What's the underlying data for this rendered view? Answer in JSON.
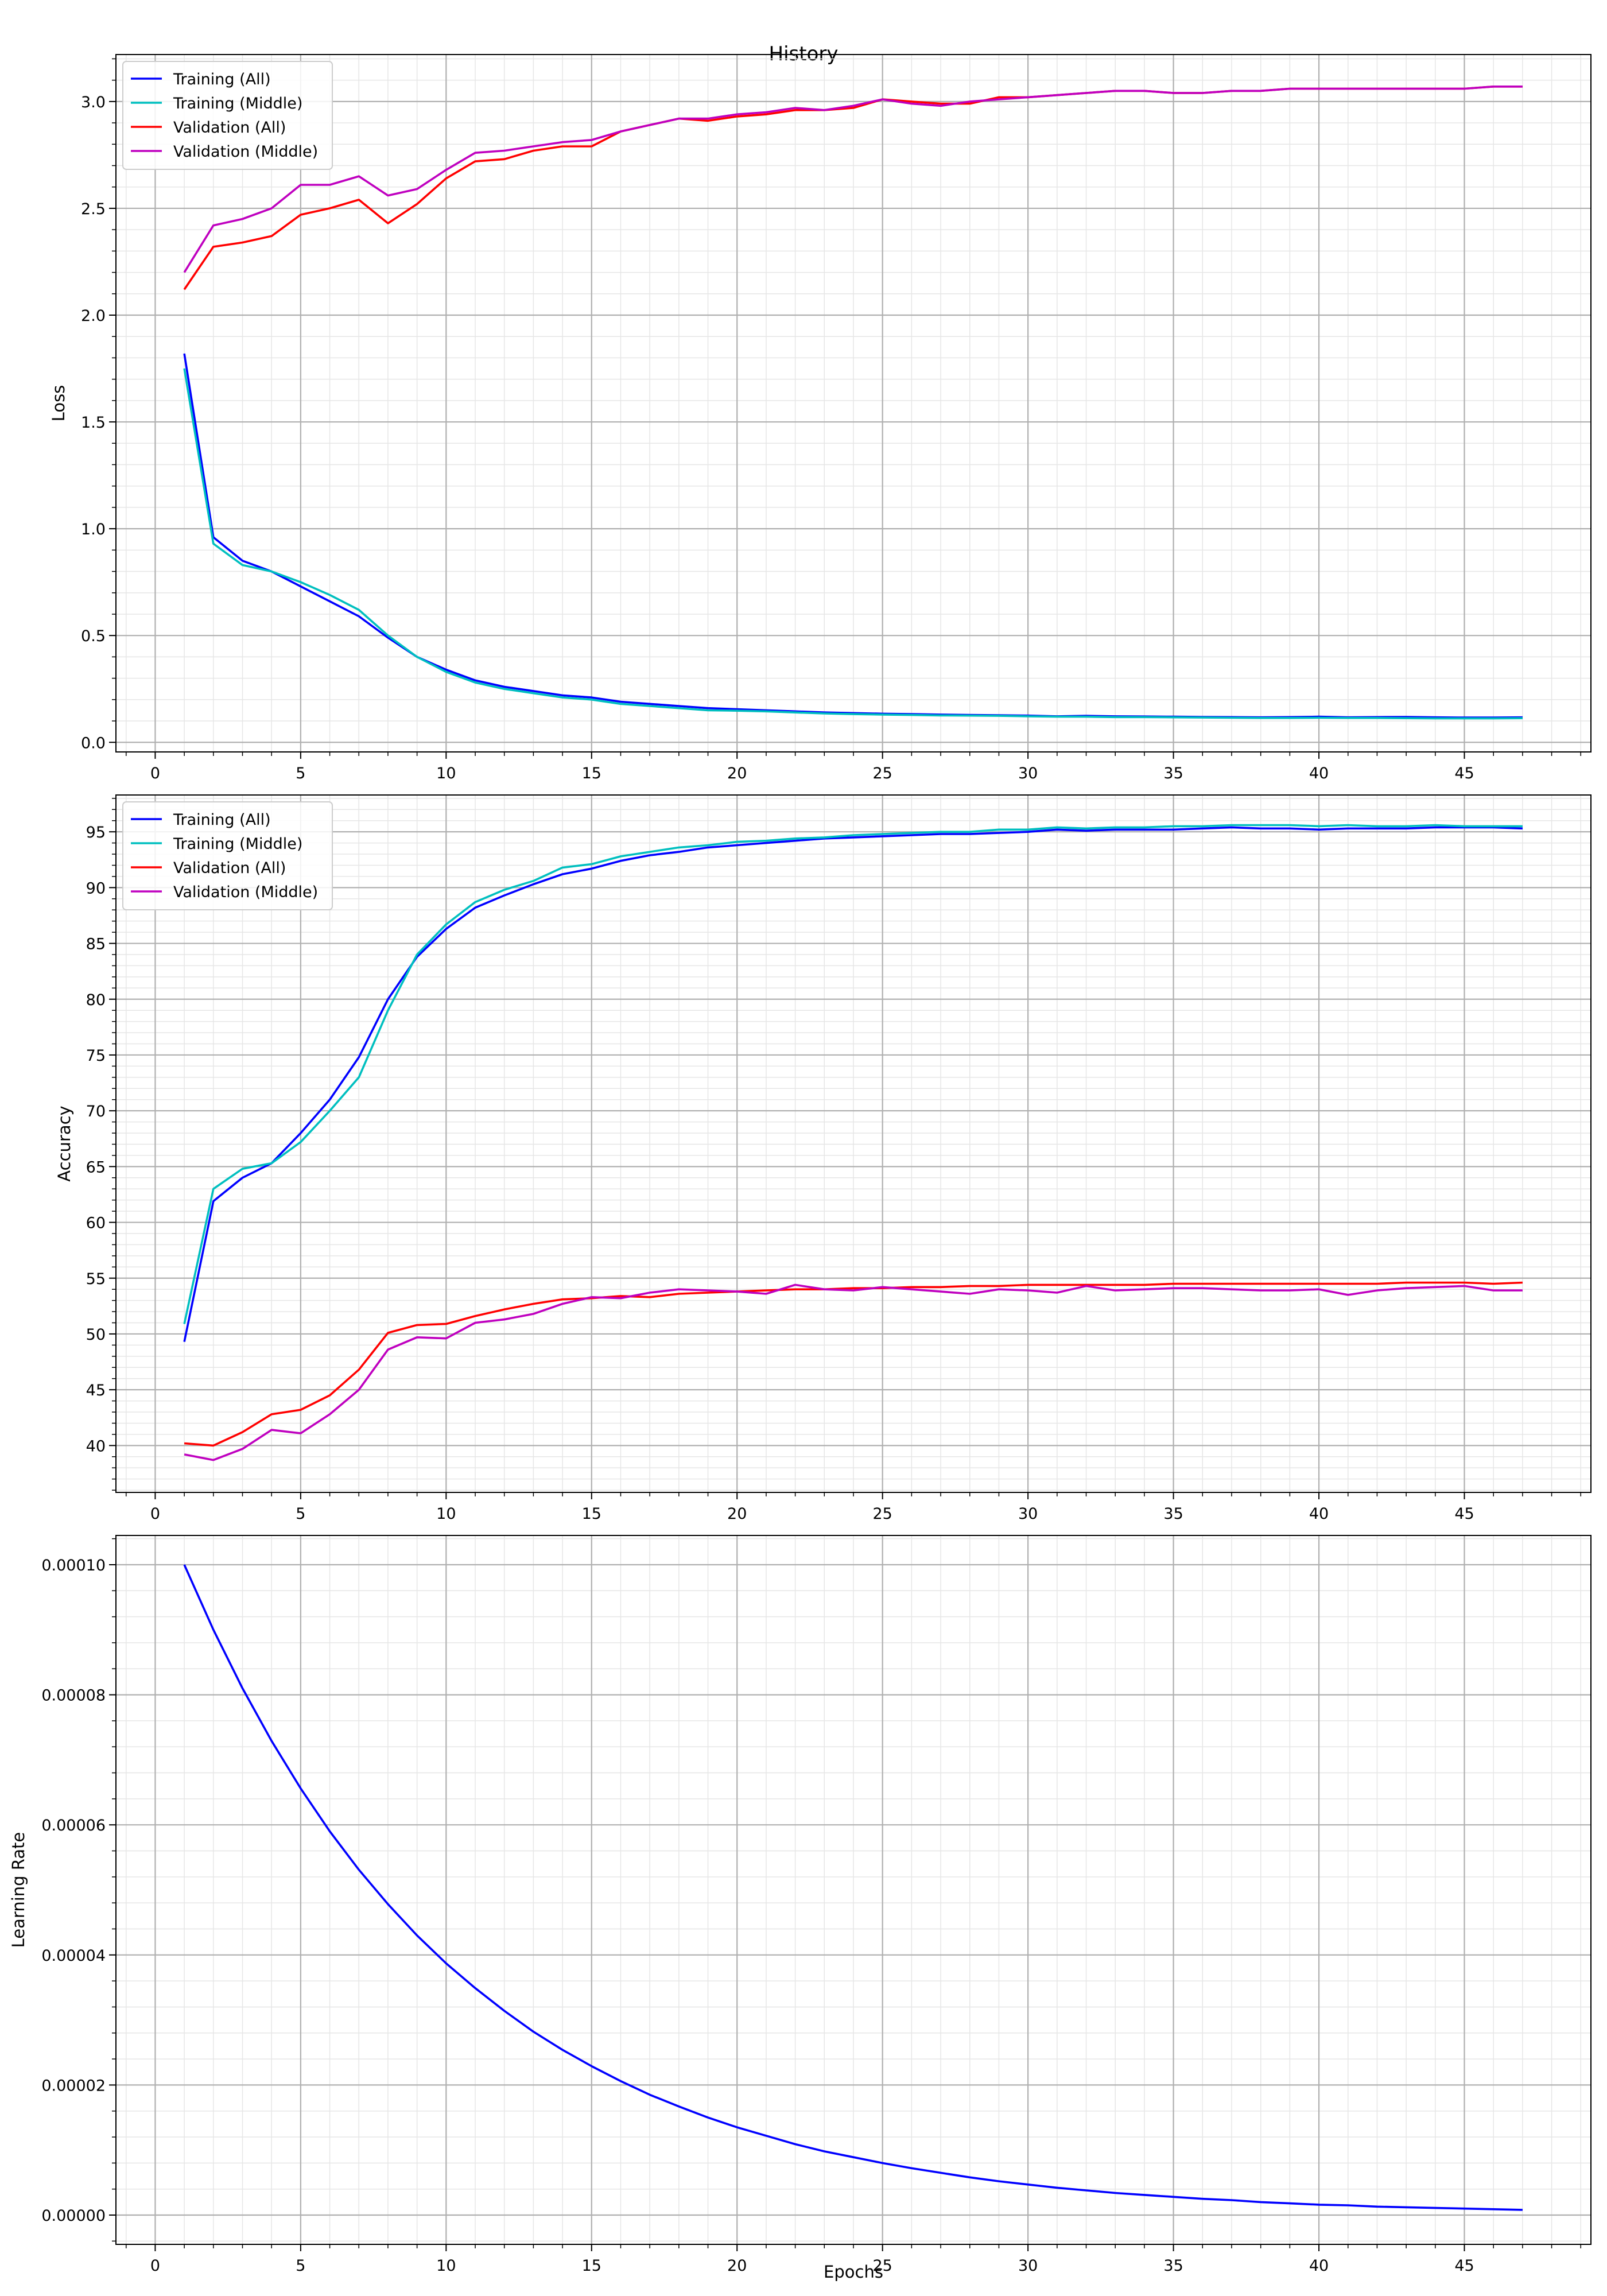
{
  "figure": {
    "title": "History",
    "xlabel": "Epochs"
  },
  "colors": {
    "training_all": "#0000ff",
    "training_middle": "#00bfbf",
    "validation_all": "#ff0000",
    "validation_middle": "#bf00bf",
    "major_grid": "#b0b0b0",
    "minor_grid": "#e6e6e6"
  },
  "chart_data": [
    {
      "type": "line",
      "ylabel": "Loss",
      "xlim": [
        -1.35,
        49.35
      ],
      "ylim": [
        -0.045,
        3.22
      ],
      "xticks": [
        0,
        5,
        10,
        15,
        20,
        25,
        30,
        35,
        40,
        45
      ],
      "yticks": [
        "0.0",
        "0.5",
        "1.0",
        "1.5",
        "2.0",
        "2.5",
        "3.0"
      ],
      "grid": true,
      "legend": "upper-left",
      "series": [
        {
          "name": "Training (All)",
          "color_key": "training_all",
          "x": [
            1,
            2,
            3,
            4,
            5,
            6,
            7,
            8,
            9,
            10,
            11,
            12,
            13,
            14,
            15,
            16,
            17,
            18,
            19,
            20,
            21,
            22,
            23,
            24,
            25,
            26,
            27,
            28,
            29,
            30,
            31,
            32,
            33,
            34,
            35,
            36,
            37,
            38,
            39,
            40,
            41,
            42,
            43,
            44,
            45,
            46,
            47
          ],
          "y": [
            1.82,
            0.96,
            0.85,
            0.8,
            0.73,
            0.66,
            0.59,
            0.49,
            0.4,
            0.34,
            0.29,
            0.26,
            0.24,
            0.22,
            0.21,
            0.19,
            0.18,
            0.17,
            0.16,
            0.155,
            0.15,
            0.145,
            0.14,
            0.137,
            0.134,
            0.132,
            0.13,
            0.128,
            0.127,
            0.125,
            0.122,
            0.124,
            0.122,
            0.121,
            0.12,
            0.119,
            0.118,
            0.117,
            0.118,
            0.12,
            0.117,
            0.118,
            0.119,
            0.117,
            0.116,
            0.116,
            0.117
          ]
        },
        {
          "name": "Training (Middle)",
          "color_key": "training_middle",
          "x": [
            1,
            2,
            3,
            4,
            5,
            6,
            7,
            8,
            9,
            10,
            11,
            12,
            13,
            14,
            15,
            16,
            17,
            18,
            19,
            20,
            21,
            22,
            23,
            24,
            25,
            26,
            27,
            28,
            29,
            30,
            31,
            32,
            33,
            34,
            35,
            36,
            37,
            38,
            39,
            40,
            41,
            42,
            43,
            44,
            45,
            46,
            47
          ],
          "y": [
            1.75,
            0.93,
            0.83,
            0.8,
            0.75,
            0.69,
            0.62,
            0.5,
            0.4,
            0.33,
            0.28,
            0.25,
            0.23,
            0.21,
            0.2,
            0.18,
            0.17,
            0.16,
            0.15,
            0.148,
            0.145,
            0.14,
            0.135,
            0.132,
            0.13,
            0.128,
            0.126,
            0.125,
            0.124,
            0.122,
            0.12,
            0.12,
            0.118,
            0.118,
            0.117,
            0.116,
            0.115,
            0.114,
            0.114,
            0.115,
            0.114,
            0.114,
            0.113,
            0.112,
            0.112,
            0.112,
            0.113
          ]
        },
        {
          "name": "Validation (All)",
          "color_key": "validation_all",
          "x": [
            1,
            2,
            3,
            4,
            5,
            6,
            7,
            8,
            9,
            10,
            11,
            12,
            13,
            14,
            15,
            16,
            17,
            18,
            19,
            20,
            21,
            22,
            23,
            24,
            25,
            26,
            27,
            28,
            29,
            30,
            31,
            32,
            33,
            34,
            35,
            36,
            37,
            38,
            39,
            40,
            41,
            42,
            43,
            44,
            45,
            46,
            47
          ],
          "y": [
            2.12,
            2.32,
            2.34,
            2.37,
            2.47,
            2.5,
            2.54,
            2.43,
            2.52,
            2.64,
            2.72,
            2.73,
            2.77,
            2.79,
            2.79,
            2.86,
            2.89,
            2.92,
            2.91,
            2.93,
            2.94,
            2.96,
            2.96,
            2.97,
            3.01,
            3.0,
            2.99,
            2.99,
            3.02,
            3.02,
            3.03,
            3.04,
            3.05,
            3.05,
            3.04,
            3.04,
            3.05,
            3.05,
            3.06,
            3.06,
            3.06,
            3.06,
            3.06,
            3.06,
            3.06,
            3.07,
            3.07
          ]
        },
        {
          "name": "Validation (Middle)",
          "color_key": "validation_middle",
          "x": [
            1,
            2,
            3,
            4,
            5,
            6,
            7,
            8,
            9,
            10,
            11,
            12,
            13,
            14,
            15,
            16,
            17,
            18,
            19,
            20,
            21,
            22,
            23,
            24,
            25,
            26,
            27,
            28,
            29,
            30,
            31,
            32,
            33,
            34,
            35,
            36,
            37,
            38,
            39,
            40,
            41,
            42,
            43,
            44,
            45,
            46,
            47
          ],
          "y": [
            2.2,
            2.42,
            2.45,
            2.5,
            2.61,
            2.61,
            2.65,
            2.56,
            2.59,
            2.68,
            2.76,
            2.77,
            2.79,
            2.81,
            2.82,
            2.86,
            2.89,
            2.92,
            2.92,
            2.94,
            2.95,
            2.97,
            2.96,
            2.98,
            3.01,
            2.99,
            2.98,
            3.0,
            3.01,
            3.02,
            3.03,
            3.04,
            3.05,
            3.05,
            3.04,
            3.04,
            3.05,
            3.05,
            3.06,
            3.06,
            3.06,
            3.06,
            3.06,
            3.06,
            3.06,
            3.07,
            3.07
          ]
        }
      ]
    },
    {
      "type": "line",
      "ylabel": "Accuracy",
      "xlim": [
        -1.35,
        49.35
      ],
      "ylim": [
        35.8,
        98.3
      ],
      "xticks": [
        0,
        5,
        10,
        15,
        20,
        25,
        30,
        35,
        40,
        45
      ],
      "yticks": [
        "40",
        "45",
        "50",
        "55",
        "60",
        "65",
        "70",
        "75",
        "80",
        "85",
        "90",
        "95"
      ],
      "grid": true,
      "legend": "upper-left",
      "series": [
        {
          "name": "Training (All)",
          "color_key": "training_all",
          "x": [
            1,
            2,
            3,
            4,
            5,
            6,
            7,
            8,
            9,
            10,
            11,
            12,
            13,
            14,
            15,
            16,
            17,
            18,
            19,
            20,
            21,
            22,
            23,
            24,
            25,
            26,
            27,
            28,
            29,
            30,
            31,
            32,
            33,
            34,
            35,
            36,
            37,
            38,
            39,
            40,
            41,
            42,
            43,
            44,
            45,
            46,
            47
          ],
          "y": [
            49.3,
            61.9,
            64.0,
            65.3,
            68.0,
            71.0,
            74.8,
            80.0,
            83.8,
            86.3,
            88.2,
            89.3,
            90.3,
            91.2,
            91.7,
            92.4,
            92.9,
            93.2,
            93.6,
            93.8,
            94.0,
            94.2,
            94.4,
            94.5,
            94.6,
            94.7,
            94.8,
            94.8,
            94.9,
            95.0,
            95.2,
            95.1,
            95.2,
            95.2,
            95.2,
            95.3,
            95.4,
            95.3,
            95.3,
            95.2,
            95.3,
            95.3,
            95.3,
            95.4,
            95.4,
            95.4,
            95.3
          ]
        },
        {
          "name": "Training (Middle)",
          "color_key": "training_middle",
          "x": [
            1,
            2,
            3,
            4,
            5,
            6,
            7,
            8,
            9,
            10,
            11,
            12,
            13,
            14,
            15,
            16,
            17,
            18,
            19,
            20,
            21,
            22,
            23,
            24,
            25,
            26,
            27,
            28,
            29,
            30,
            31,
            32,
            33,
            34,
            35,
            36,
            37,
            38,
            39,
            40,
            41,
            42,
            43,
            44,
            45,
            46,
            47
          ],
          "y": [
            50.9,
            63.0,
            64.8,
            65.3,
            67.2,
            70.0,
            73.0,
            79.0,
            84.0,
            86.7,
            88.7,
            89.8,
            90.6,
            91.8,
            92.1,
            92.8,
            93.2,
            93.6,
            93.8,
            94.1,
            94.2,
            94.4,
            94.5,
            94.7,
            94.8,
            94.9,
            95.0,
            95.0,
            95.2,
            95.2,
            95.4,
            95.3,
            95.4,
            95.4,
            95.5,
            95.5,
            95.6,
            95.6,
            95.6,
            95.5,
            95.6,
            95.5,
            95.5,
            95.6,
            95.5,
            95.5,
            95.5
          ]
        },
        {
          "name": "Validation (All)",
          "color_key": "validation_all",
          "x": [
            1,
            2,
            3,
            4,
            5,
            6,
            7,
            8,
            9,
            10,
            11,
            12,
            13,
            14,
            15,
            16,
            17,
            18,
            19,
            20,
            21,
            22,
            23,
            24,
            25,
            26,
            27,
            28,
            29,
            30,
            31,
            32,
            33,
            34,
            35,
            36,
            37,
            38,
            39,
            40,
            41,
            42,
            43,
            44,
            45,
            46,
            47
          ],
          "y": [
            40.2,
            40.0,
            41.2,
            42.8,
            43.2,
            44.5,
            46.8,
            50.1,
            50.8,
            50.9,
            51.6,
            52.2,
            52.7,
            53.1,
            53.2,
            53.4,
            53.3,
            53.6,
            53.7,
            53.8,
            53.9,
            54.0,
            54.0,
            54.1,
            54.1,
            54.2,
            54.2,
            54.3,
            54.3,
            54.4,
            54.4,
            54.4,
            54.4,
            54.4,
            54.5,
            54.5,
            54.5,
            54.5,
            54.5,
            54.5,
            54.5,
            54.5,
            54.6,
            54.6,
            54.6,
            54.5,
            54.6
          ]
        },
        {
          "name": "Validation (Middle)",
          "color_key": "validation_middle",
          "x": [
            1,
            2,
            3,
            4,
            5,
            6,
            7,
            8,
            9,
            10,
            11,
            12,
            13,
            14,
            15,
            16,
            17,
            18,
            19,
            20,
            21,
            22,
            23,
            24,
            25,
            26,
            27,
            28,
            29,
            30,
            31,
            32,
            33,
            34,
            35,
            36,
            37,
            38,
            39,
            40,
            41,
            42,
            43,
            44,
            45,
            46,
            47
          ],
          "y": [
            39.2,
            38.7,
            39.7,
            41.4,
            41.1,
            42.8,
            45.0,
            48.6,
            49.7,
            49.6,
            51.0,
            51.3,
            51.8,
            52.7,
            53.3,
            53.2,
            53.7,
            54.0,
            53.9,
            53.8,
            53.6,
            54.4,
            54.0,
            53.9,
            54.2,
            54.0,
            53.8,
            53.6,
            54.0,
            53.9,
            53.7,
            54.3,
            53.9,
            54.0,
            54.1,
            54.1,
            54.0,
            53.9,
            53.9,
            54.0,
            53.5,
            53.9,
            54.1,
            54.2,
            54.3,
            53.9,
            53.9
          ]
        }
      ]
    },
    {
      "type": "line",
      "ylabel": "Learning Rate",
      "xlim": [
        -1.35,
        49.35
      ],
      "ylim": [
        -4.5e-06,
        0.0001045
      ],
      "xticks": [
        0,
        5,
        10,
        15,
        20,
        25,
        30,
        35,
        40,
        45
      ],
      "yticks": [
        "0.00000",
        "0.00002",
        "0.00004",
        "0.00006",
        "0.00008",
        "0.00010"
      ],
      "grid": true,
      "legend": "",
      "series": [
        {
          "color_key": "training_all",
          "x": [
            1,
            2,
            3,
            4,
            5,
            6,
            7,
            8,
            9,
            10,
            11,
            12,
            13,
            14,
            15,
            16,
            17,
            18,
            19,
            20,
            21,
            22,
            23,
            24,
            25,
            26,
            27,
            28,
            29,
            30,
            31,
            32,
            33,
            34,
            35,
            36,
            37,
            38,
            39,
            40,
            41,
            42,
            43,
            44,
            45,
            46,
            47
          ],
          "y": [
            0.0001,
            9e-05,
            8.1e-05,
            7.29e-05,
            6.56e-05,
            5.9e-05,
            5.31e-05,
            4.78e-05,
            4.3e-05,
            3.87e-05,
            3.49e-05,
            3.14e-05,
            2.82e-05,
            2.54e-05,
            2.29e-05,
            2.06e-05,
            1.85e-05,
            1.67e-05,
            1.5e-05,
            1.35e-05,
            1.22e-05,
            1.09e-05,
            9.8e-06,
            8.9e-06,
            8e-06,
            7.2e-06,
            6.5e-06,
            5.8e-06,
            5.2e-06,
            4.7e-06,
            4.2e-06,
            3.8e-06,
            3.4e-06,
            3.1e-06,
            2.8e-06,
            2.5e-06,
            2.3e-06,
            2e-06,
            1.8e-06,
            1.6e-06,
            1.5e-06,
            1.3e-06,
            1.2e-06,
            1.1e-06,
            1e-06,
            9e-07,
            8e-07
          ]
        }
      ]
    }
  ]
}
